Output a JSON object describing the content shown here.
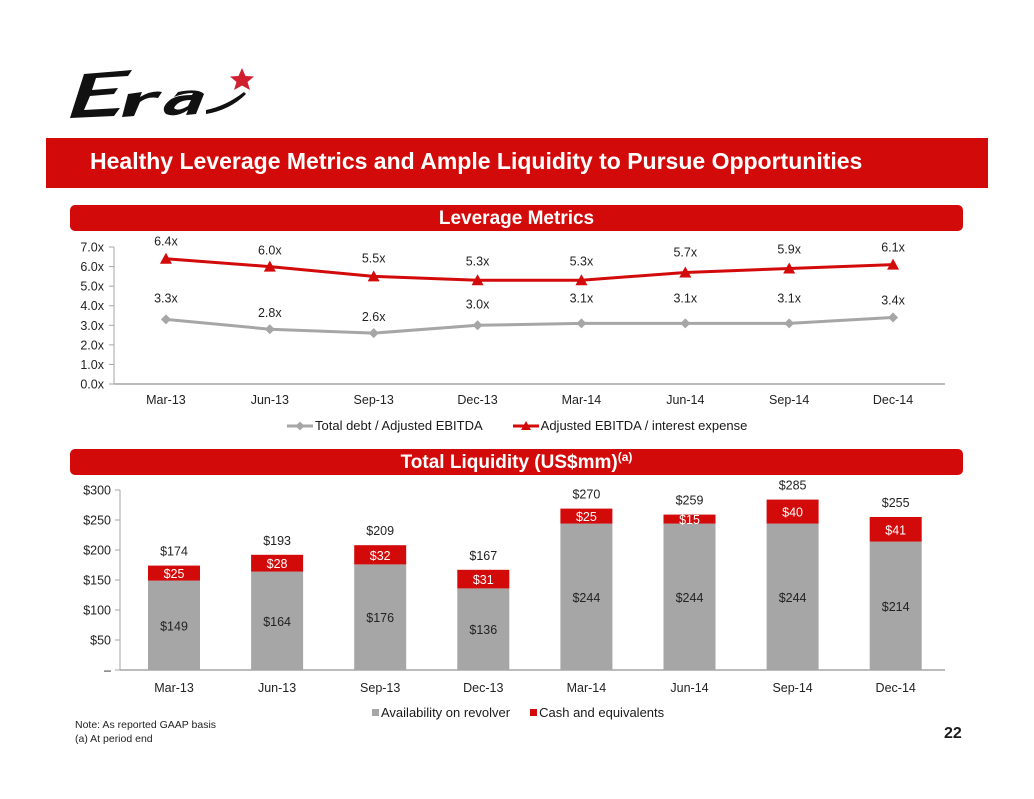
{
  "logo": {
    "text": "Era",
    "icon": "star-icon",
    "star_color": "#d0202f"
  },
  "page_title": "Healthy Leverage Metrics and Ample Liquidity to Pursue Opportunities",
  "sections": {
    "leverage": "Leverage Metrics",
    "liquidity": "Total Liquidity (US$mm)",
    "liquidity_sup": "(a)"
  },
  "colors": {
    "accent_red": "#d30a0a",
    "gray": "#a6a6a6"
  },
  "chart_data": [
    {
      "type": "line",
      "title": "Leverage Metrics",
      "categories": [
        "Mar-13",
        "Jun-13",
        "Sep-13",
        "Dec-13",
        "Mar-14",
        "Jun-14",
        "Sep-14",
        "Dec-14"
      ],
      "series": [
        {
          "name": "Total debt / Adjusted EBITDA",
          "color": "#a6a6a6",
          "marker": "diamond",
          "values": [
            3.3,
            2.8,
            2.6,
            3.0,
            3.1,
            3.1,
            3.1,
            3.4
          ],
          "labels": [
            "3.3x",
            "2.8x",
            "2.6x",
            "3.0x",
            "3.1x",
            "3.1x",
            "3.1x",
            "3.4x"
          ]
        },
        {
          "name": "Adjusted EBITDA / interest expense",
          "color": "#d30a0a",
          "marker": "triangle",
          "values": [
            6.4,
            6.0,
            5.5,
            5.3,
            5.3,
            5.7,
            5.9,
            6.1
          ],
          "labels": [
            "6.4x",
            "6.0x",
            "5.5x",
            "5.3x",
            "5.3x",
            "5.7x",
            "5.9x",
            "6.1x"
          ]
        }
      ],
      "ylim": [
        0,
        7
      ],
      "yticks": [
        "0.0x",
        "1.0x",
        "2.0x",
        "3.0x",
        "4.0x",
        "5.0x",
        "6.0x",
        "7.0x"
      ],
      "xlabel": "",
      "ylabel": "",
      "grid": false,
      "legend": "bottom"
    },
    {
      "type": "bar",
      "stacked": true,
      "title": "Total Liquidity (US$mm)",
      "categories": [
        "Mar-13",
        "Jun-13",
        "Sep-13",
        "Dec-13",
        "Mar-14",
        "Jun-14",
        "Sep-14",
        "Dec-14"
      ],
      "series": [
        {
          "name": "Availability on revolver",
          "color": "#a6a6a6",
          "values": [
            149,
            164,
            176,
            136,
            244,
            244,
            244,
            214
          ],
          "labels": [
            "$149",
            "$164",
            "$176",
            "$136",
            "$244",
            "$244",
            "$244",
            "$214"
          ]
        },
        {
          "name": "Cash and equivalents",
          "color": "#d30a0a",
          "values": [
            25,
            28,
            32,
            31,
            25,
            15,
            40,
            41
          ],
          "labels": [
            "$25",
            "$28",
            "$32",
            "$31",
            "$25",
            "$15",
            "$40",
            "$41"
          ]
        }
      ],
      "totals": [
        174,
        193,
        209,
        167,
        270,
        259,
        285,
        255
      ],
      "total_labels": [
        "$174",
        "$193",
        "$209",
        "$167",
        "$270",
        "$259",
        "$285",
        "$255"
      ],
      "ylim": [
        0,
        300
      ],
      "yticks": [
        "–",
        "$50",
        "$100",
        "$150",
        "$200",
        "$250",
        "$300"
      ],
      "xlabel": "",
      "ylabel": "",
      "grid": false,
      "legend": "bottom"
    }
  ],
  "notes": [
    "Note:  As reported GAAP basis",
    "(a)  At period end"
  ],
  "page_number": "22"
}
